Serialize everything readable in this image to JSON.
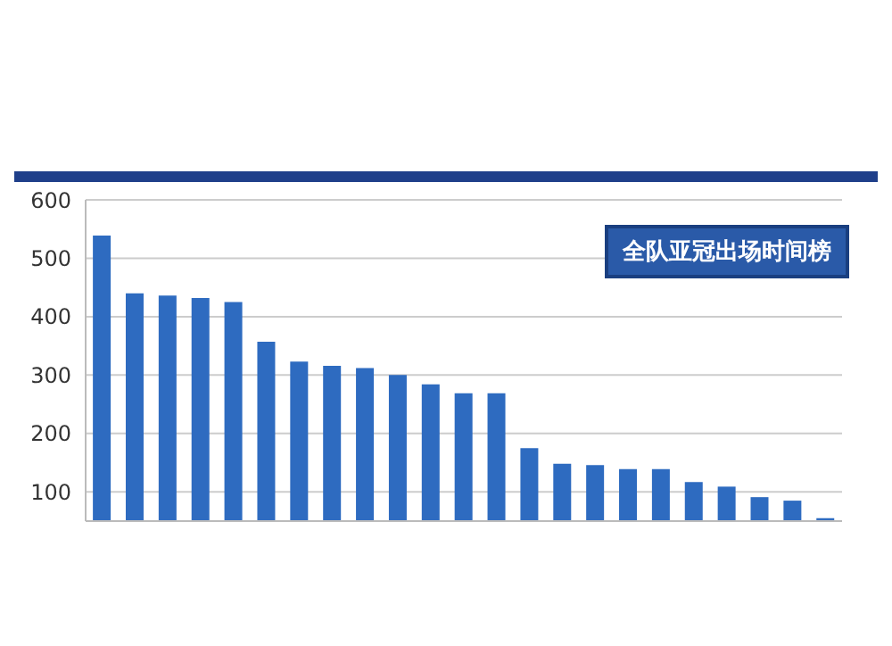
{
  "chart_data": {
    "type": "bar",
    "title": "全队亚冠出场时间榜",
    "categories": [
      null,
      null,
      null,
      null,
      null,
      null,
      null,
      null,
      null,
      null,
      null,
      null,
      null,
      null,
      null,
      null,
      null,
      null,
      null,
      null,
      null,
      null,
      null
    ],
    "values": [
      539,
      440,
      436,
      432,
      425,
      357,
      323,
      316,
      312,
      300,
      284,
      269,
      269,
      175,
      148,
      146,
      139,
      139,
      117,
      109,
      91,
      85,
      55
    ],
    "color": "#2e6bc0",
    "ylim": [
      50,
      600
    ],
    "yticks": [
      100,
      200,
      300,
      400,
      500,
      600
    ],
    "grid": "y",
    "tick_labels": "y"
  }
}
